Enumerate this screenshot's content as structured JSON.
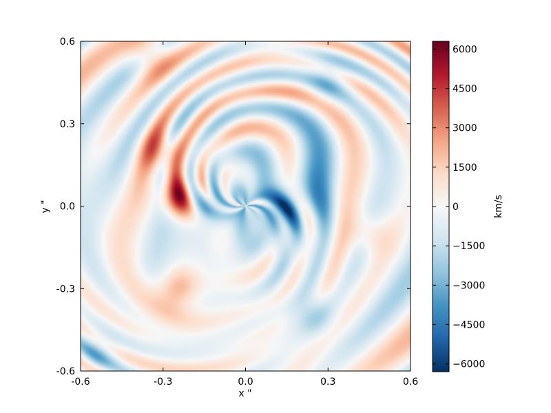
{
  "chart_data": {
    "type": "heatmap",
    "xlabel": "x \"",
    "ylabel": "y \"",
    "xlim": [
      -0.6,
      0.6
    ],
    "ylim": [
      -0.6,
      0.6
    ],
    "xticks": [
      -0.6,
      -0.3,
      0.0,
      0.3,
      0.6
    ],
    "xtick_labels": [
      "-0.6",
      "-0.3",
      "0.0",
      "0.3",
      "0.6"
    ],
    "yticks": [
      -0.6,
      -0.3,
      0.0,
      0.3,
      0.6
    ],
    "ytick_labels": [
      "-0.6",
      "-0.3",
      "0.0",
      "0.3",
      "0.6"
    ],
    "grid": false,
    "colorbar": {
      "label": "km/s",
      "range": [
        -6300,
        6300
      ],
      "ticks": [
        6000,
        4500,
        3000,
        1500,
        0,
        -1500,
        -3000,
        -4500,
        -6000
      ],
      "tick_labels": [
        "6000",
        "4500",
        "3000",
        "1500",
        "0",
        "−1500",
        "−3000",
        "−4500",
        "−6000"
      ],
      "colormap": "RdBu_r",
      "colors": [
        "#053061",
        "#2166ac",
        "#4393c3",
        "#92c5de",
        "#d1e5f0",
        "#f7f7f7",
        "#fddbc7",
        "#f4a582",
        "#d6604d",
        "#b2182b",
        "#67001f"
      ]
    },
    "field_summary": {
      "description_units": "line-of-sight velocity in km/s",
      "features": [
        {
          "region": "center-left",
          "x": -0.25,
          "y": 0.03,
          "value": 5500
        },
        {
          "region": "center",
          "x": -0.15,
          "y": 0.0,
          "value": -3000
        },
        {
          "region": "center-right",
          "x": 0.15,
          "y": 0.0,
          "value": -3500
        },
        {
          "region": "left ring",
          "x": -0.3,
          "y": 0.2,
          "value": 3500
        },
        {
          "region": "lower-left ring",
          "x": -0.25,
          "y": -0.3,
          "value": 4000
        },
        {
          "region": "right edge",
          "x": 0.45,
          "y": -0.1,
          "value": 2500
        },
        {
          "region": "upper-right",
          "x": 0.3,
          "y": 0.45,
          "value": -2500
        },
        {
          "region": "lower-right",
          "x": 0.25,
          "y": -0.4,
          "value": -2500
        },
        {
          "region": "top edge",
          "x": -0.35,
          "y": 0.55,
          "value": 3000
        },
        {
          "region": "bottom-left",
          "x": -0.55,
          "y": -0.55,
          "value": -2500
        }
      ]
    }
  }
}
